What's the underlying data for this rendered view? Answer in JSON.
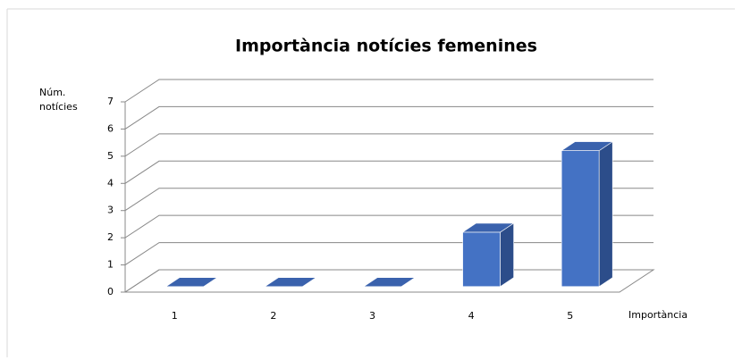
{
  "chart_data": {
    "type": "bar3d",
    "title": "Importància notícies femenines",
    "y_label": "Núm. notícies",
    "x_label": "Importància",
    "categories": [
      "1",
      "2",
      "3",
      "4",
      "5"
    ],
    "values": [
      0,
      0,
      0,
      2,
      5
    ],
    "color": "#4472c4",
    "ylim": [
      0,
      7
    ],
    "yticks": [
      0,
      1,
      2,
      3,
      4,
      5,
      6,
      7
    ],
    "grid": true
  }
}
